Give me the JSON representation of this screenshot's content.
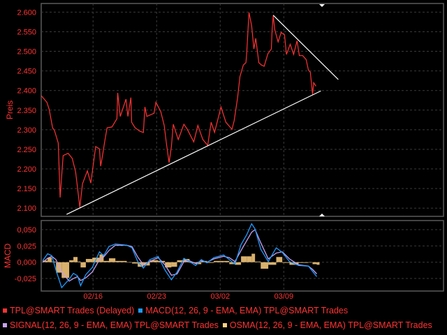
{
  "chart_data": [
    {
      "type": "line",
      "ylabel": "Preis",
      "ylim": [
        2.079,
        2.622
      ],
      "yticks": [
        "2.100",
        "2.150",
        "2.200",
        "2.250",
        "2.300",
        "2.350",
        "2.400",
        "2.450",
        "2.500",
        "2.550",
        "2.600"
      ],
      "xlim": [
        "02/10 07",
        "03/26 14"
      ],
      "xticks": [
        "02/16",
        "02/23",
        "03/02",
        "03/09"
      ],
      "grid": true,
      "series": [
        {
          "name": "TPL@SMART Trades (Delayed)",
          "color": "#ff3333",
          "points": [
            [
              "02/10 07",
              2.387
            ],
            [
              "02/10 22",
              2.37
            ],
            [
              "02/11 04",
              2.352
            ],
            [
              "02/11 13",
              2.305
            ],
            [
              "02/11 18",
              2.298
            ],
            [
              "02/12 04",
              2.266
            ],
            [
              "02/12 09",
              2.127
            ],
            [
              "02/12 17",
              2.234
            ],
            [
              "02/13 06",
              2.24
            ],
            [
              "02/13 17",
              2.227
            ],
            [
              "02/14 02",
              2.192
            ],
            [
              "02/14 13",
              2.102
            ],
            [
              "02/14 20",
              2.162
            ],
            [
              "02/15 09",
              2.195
            ],
            [
              "02/15 18",
              2.164
            ],
            [
              "02/16 07",
              2.257
            ],
            [
              "02/16 17",
              2.251
            ],
            [
              "02/16 20",
              2.207
            ],
            [
              "02/17 02",
              2.24
            ],
            [
              "02/17 07",
              2.271
            ],
            [
              "02/17 13",
              2.305
            ],
            [
              "02/18 02",
              2.307
            ],
            [
              "02/18 15",
              2.328
            ],
            [
              "02/18 17",
              2.394
            ],
            [
              "02/19 00",
              2.334
            ],
            [
              "02/19 15",
              2.378
            ],
            [
              "02/19 20",
              2.334
            ],
            [
              "02/20 04",
              2.382
            ],
            [
              "02/20 06",
              2.319
            ],
            [
              "02/20 15",
              2.305
            ],
            [
              "02/21 04",
              2.296
            ],
            [
              "02/21 13",
              2.293
            ],
            [
              "02/21 17",
              2.358
            ],
            [
              "02/21 22",
              2.334
            ],
            [
              "02/22 17",
              2.342
            ],
            [
              "02/22 22",
              2.37
            ],
            [
              "02/23 11",
              2.346
            ],
            [
              "02/23 20",
              2.311
            ],
            [
              "02/24 02",
              2.263
            ],
            [
              "02/24 09",
              2.216
            ],
            [
              "02/24 15",
              2.257
            ],
            [
              "02/24 20",
              2.314
            ],
            [
              "02/25 09",
              2.275
            ],
            [
              "02/26 00",
              2.314
            ],
            [
              "02/26 09",
              2.301
            ],
            [
              "02/27 02",
              2.269
            ],
            [
              "02/27 13",
              2.311
            ],
            [
              "02/28 02",
              2.275
            ],
            [
              "02/28 15",
              2.26
            ],
            [
              "03/01 00",
              2.319
            ],
            [
              "03/01 09",
              2.293
            ],
            [
              "03/02 02",
              2.358
            ],
            [
              "03/02 15",
              2.319
            ],
            [
              "03/03 07",
              2.301
            ],
            [
              "03/03 13",
              2.323
            ],
            [
              "03/03 22",
              2.382
            ],
            [
              "03/04 04",
              2.435
            ],
            [
              "03/04 13",
              2.465
            ],
            [
              "03/04 20",
              2.471
            ],
            [
              "03/04 22",
              2.494
            ],
            [
              "03/05 04",
              2.599
            ],
            [
              "03/05 11",
              2.565
            ],
            [
              "03/05 17",
              2.506
            ],
            [
              "03/05 22",
              2.533
            ],
            [
              "03/06 06",
              2.471
            ],
            [
              "03/06 13",
              2.465
            ],
            [
              "03/06 20",
              2.462
            ],
            [
              "03/07 06",
              2.494
            ],
            [
              "03/07 15",
              2.506
            ],
            [
              "03/07 17",
              2.551
            ],
            [
              "03/07 20",
              2.592
            ],
            [
              "03/08 00",
              2.556
            ],
            [
              "03/08 09",
              2.524
            ],
            [
              "03/08 17",
              2.548
            ],
            [
              "03/09 02",
              2.542
            ],
            [
              "03/09 07",
              2.492
            ],
            [
              "03/09 17",
              2.518
            ],
            [
              "03/10 02",
              2.492
            ],
            [
              "03/10 11",
              2.527
            ],
            [
              "03/10 17",
              2.489
            ],
            [
              "03/11 02",
              2.489
            ],
            [
              "03/11 11",
              2.479
            ],
            [
              "03/11 17",
              2.452
            ],
            [
              "03/11 22",
              2.447
            ],
            [
              "03/12 04",
              2.39
            ],
            [
              "03/12 07",
              2.42
            ],
            [
              "03/12 13",
              2.411
            ]
          ]
        }
      ],
      "trendlines": [
        {
          "color": "#ffffff",
          "from": [
            "02/13 02",
            2.084
          ],
          "to": [
            "03/13 02",
            2.399
          ]
        },
        {
          "color": "#ffffff",
          "from": [
            "03/07 20",
            2.592
          ],
          "to": [
            "03/15 00",
            2.428
          ]
        }
      ]
    },
    {
      "type": "line",
      "ylabel": "MACD",
      "ylim": [
        -0.0442,
        0.0639
      ],
      "yticks": [
        {
          "v": 0.05,
          "label": "0,050"
        },
        {
          "v": 0.025,
          "label": "0,025"
        },
        {
          "v": 0,
          "label": "0,000"
        },
        {
          "v": -0.025,
          "label": "-0,025"
        }
      ],
      "xlim": [
        "02/10 07",
        "03/26 14"
      ],
      "xticks": [
        "02/16",
        "02/23",
        "03/02",
        "03/09"
      ],
      "grid": true,
      "x": [
        "02/10 11",
        "02/11 00",
        "02/11 11",
        "02/11 22",
        "02/12 13",
        "02/13 09",
        "02/13 20",
        "02/14 07",
        "02/14 15",
        "02/15 05",
        "02/15 22",
        "02/16 17",
        "02/17 04",
        "02/17 18",
        "02/18 11",
        "02/19 17",
        "02/20 07",
        "02/20 22",
        "02/21 13",
        "02/22 06",
        "02/23 04",
        "02/23 22",
        "02/24 15",
        "02/25 06",
        "02/26 00",
        "02/26 15",
        "02/27 07",
        "02/27 22",
        "02/28 13",
        "03/01 07",
        "03/02 09",
        "03/03 00",
        "03/03 15",
        "03/04 07",
        "03/04 22",
        "03/05 11",
        "03/05 20",
        "03/06 11",
        "03/07 07",
        "03/08 04",
        "03/08 20",
        "03/09 15",
        "03/10 15",
        "03/11 17",
        "03/12 04",
        "03/12 15"
      ],
      "series": [
        {
          "name": "MACD(12, 26, 9 - EMA, EMA) TPL@SMART Trades",
          "color": "#1e9bff",
          "kind": "line",
          "values": [
            0.0025,
            0.013,
            0.01,
            -0.012,
            -0.039,
            -0.026,
            -0.017,
            -0.021,
            -0.036,
            -0.019,
            -0.008,
            0.016,
            0.01,
            0.024,
            0.028,
            0.026,
            0.022,
            0.001,
            -0.009,
            0.004,
            0.009,
            -0.012,
            -0.027,
            -0.015,
            0.006,
            0.001,
            -0.005,
            0.004,
            -0.001,
            0.007,
            0.011,
            0.004,
            -0.003,
            0.027,
            0.042,
            0.059,
            0.051,
            0.02,
            0.001,
            0.022,
            0.015,
            0.001,
            -0.005,
            -0.006,
            -0.014,
            -0.022
          ]
        },
        {
          "name": "SIGNAL(12, 26, 9 - EMA, EMA) TPL@SMART Trades",
          "color": "#c9a0f0",
          "kind": "line",
          "values": [
            0.0,
            0.006,
            0.009,
            0.004,
            -0.015,
            -0.029,
            -0.025,
            -0.022,
            -0.028,
            -0.024,
            -0.015,
            0.004,
            0.008,
            0.018,
            0.026,
            0.026,
            0.024,
            0.008,
            -0.004,
            0.001,
            0.007,
            -0.004,
            -0.02,
            -0.018,
            0.001,
            0.002,
            -0.002,
            0.002,
            0.0,
            0.005,
            0.009,
            0.007,
            0.001,
            0.018,
            0.033,
            0.046,
            0.05,
            0.03,
            0.005,
            0.014,
            0.016,
            0.005,
            -0.004,
            -0.006,
            -0.011,
            -0.018
          ]
        },
        {
          "name": "OSMA(12, 26, 9 - EMA, EMA) TPL@SMART Trades",
          "color": "#ffd080",
          "kind": "histogram",
          "values": [
            0.0025,
            0.007,
            0.001,
            -0.016,
            -0.024,
            0.003,
            0.008,
            0.001,
            -0.008,
            0.005,
            0.007,
            0.012,
            0.002,
            0.006,
            0.002,
            0.0,
            -0.002,
            -0.007,
            -0.005,
            0.003,
            0.002,
            -0.008,
            -0.007,
            0.003,
            0.005,
            -0.001,
            -0.003,
            0.002,
            -0.001,
            0.002,
            0.002,
            -0.003,
            -0.004,
            0.009,
            0.009,
            0.013,
            0.001,
            -0.01,
            -0.004,
            0.008,
            -0.001,
            -0.004,
            -0.001,
            0.0,
            -0.003,
            -0.004
          ]
        }
      ]
    }
  ],
  "legend": {
    "items": [
      {
        "label": "TPL@SMART Trades (Delayed)",
        "color": "#ff3333"
      },
      {
        "label": "MACD(12, 26, 9 - EMA, EMA) TPL@SMART Trades",
        "color": "#1e9bff"
      },
      {
        "label": "SIGNAL(12, 26, 9 - EMA, EMA) TPL@SMART Trades",
        "color": "#c9a0f0"
      },
      {
        "label": "OSMA(12, 26, 9 - EMA, EMA) TPL@SMART Trades",
        "color": "#ffd080"
      }
    ],
    "text_color": "#ff3333"
  }
}
